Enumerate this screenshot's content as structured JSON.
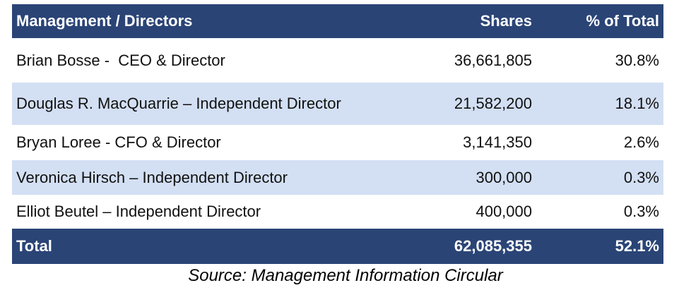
{
  "table": {
    "header": {
      "name": "Management / Directors",
      "shares": "Shares",
      "pct": "% of Total"
    },
    "rows": [
      {
        "name": "Brian Bosse -  CEO & Director",
        "shares": "36,661,805",
        "pct": "30.8%"
      },
      {
        "name": "Douglas R. MacQuarrie – Independent Director",
        "shares": "21,582,200",
        "pct": "18.1%"
      },
      {
        "name": "Bryan Loree - CFO & Director",
        "shares": "3,141,350",
        "pct": "2.6%"
      },
      {
        "name": "Veronica Hirsch – Independent Director",
        "shares": "300,000",
        "pct": "0.3%"
      },
      {
        "name": "Elliot Beutel – Independent Director",
        "shares": "400,000",
        "pct": "0.3%"
      }
    ],
    "total": {
      "name": "Total",
      "shares": "62,085,355",
      "pct": "52.1%"
    }
  },
  "source": "Source: Management Information Circular",
  "colors": {
    "header_bg": "#2a4476",
    "shaded_row": "#d3dff3"
  }
}
